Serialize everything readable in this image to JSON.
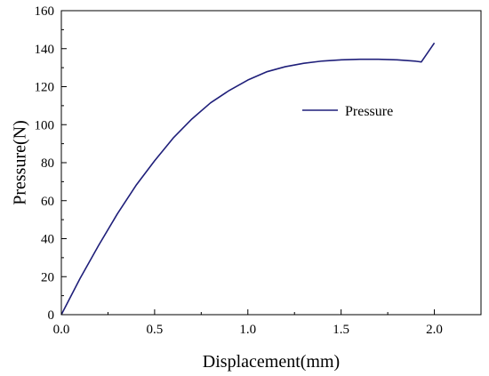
{
  "chart_data": {
    "type": "line",
    "xlabel": "Displacement(mm)",
    "ylabel": "Pressure(N)",
    "xlim": [
      0,
      2.25
    ],
    "ylim": [
      0,
      160
    ],
    "x_ticks": [
      0.0,
      0.5,
      1.0,
      1.5,
      2.0
    ],
    "x_tick_labels": [
      "0.0",
      "0.5",
      "1.0",
      "1.5",
      "2.0"
    ],
    "y_ticks": [
      0,
      20,
      40,
      60,
      80,
      100,
      120,
      140,
      160
    ],
    "y_tick_labels": [
      "0",
      "20",
      "40",
      "60",
      "80",
      "100",
      "120",
      "140",
      "160"
    ],
    "grid": false,
    "legend_position": "upper-right",
    "series": [
      {
        "name": "Pressure",
        "color": "#1f1f7a",
        "x": [
          0.0,
          0.1,
          0.2,
          0.3,
          0.4,
          0.5,
          0.6,
          0.7,
          0.8,
          0.9,
          1.0,
          1.1,
          1.2,
          1.3,
          1.4,
          1.5,
          1.6,
          1.7,
          1.8,
          1.9,
          1.93,
          2.0
        ],
        "y": [
          0,
          19,
          36.5,
          53,
          68,
          81,
          93,
          103,
          111.5,
          118,
          123.5,
          127.8,
          130.5,
          132.3,
          133.5,
          134.1,
          134.4,
          134.4,
          134.1,
          133.4,
          133,
          143
        ]
      }
    ]
  }
}
